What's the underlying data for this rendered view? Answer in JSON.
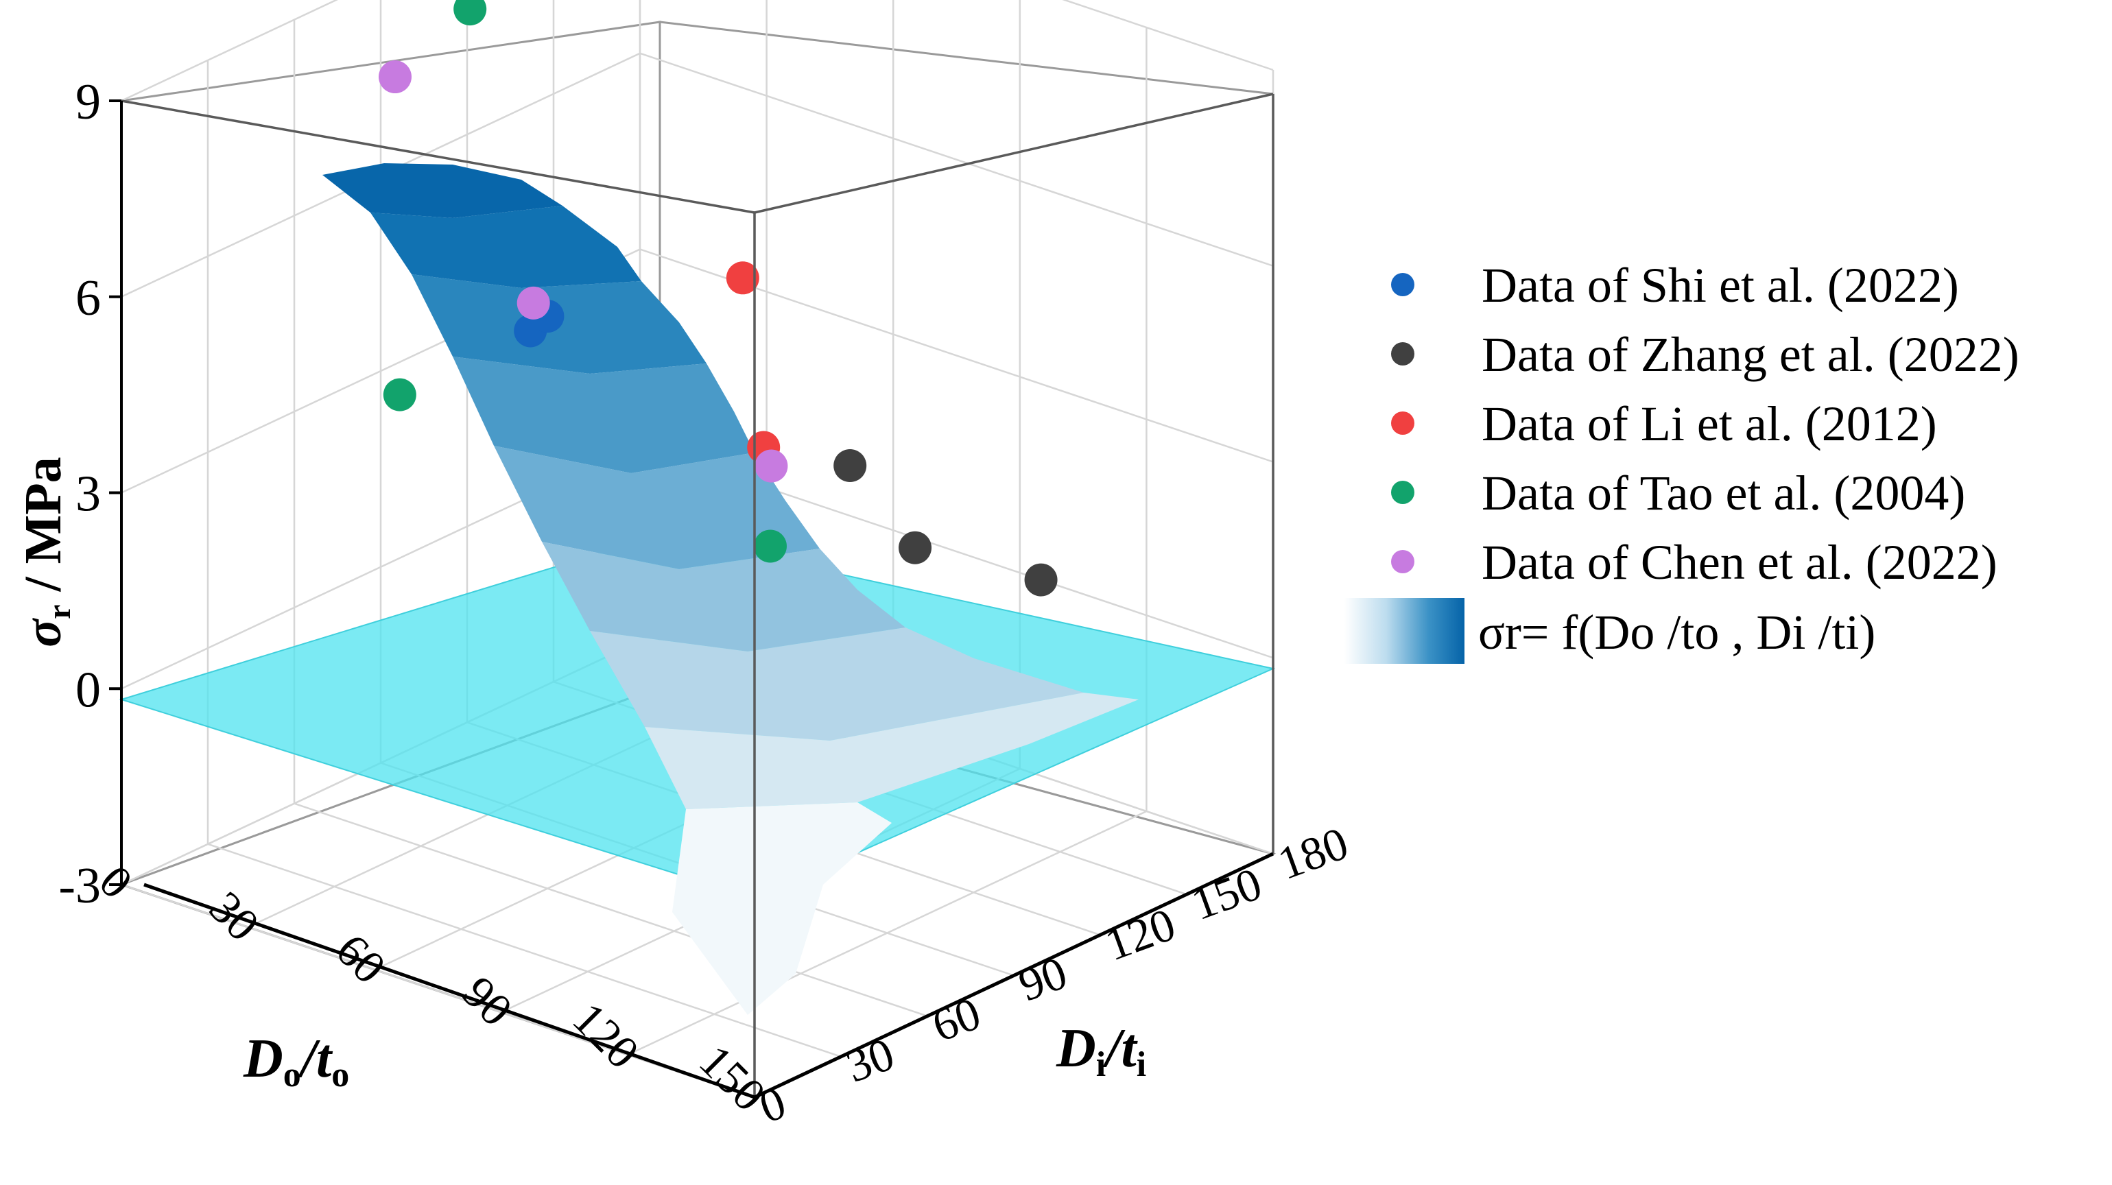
{
  "chart_data": {
    "type": "scatter",
    "title": "",
    "zlabel": "σr / MPa",
    "xlabel": "Do/to",
    "ylabel": "Di/ti",
    "x_range": [
      0,
      150
    ],
    "y_range": [
      0,
      180
    ],
    "z_range": [
      -3,
      9
    ],
    "z_ticks": [
      "9",
      "6",
      "3",
      "0",
      "-3"
    ],
    "x_ticks": [
      "0",
      "30",
      "60",
      "90",
      "120",
      "150"
    ],
    "y_ticks": [
      "0",
      "30",
      "60",
      "90",
      "120",
      "150",
      "180"
    ],
    "surface": {
      "label": "σr= f(Do /to , Di /ti)",
      "function": "σr = f(Do/to, Di/ti)",
      "colors": [
        "#f2f8fb",
        "#d5e8f2",
        "#b5d6e9",
        "#92c3df",
        "#6caed4",
        "#4a9ac8",
        "#2a86bd",
        "#1172b2",
        "#0866aa"
      ],
      "plane_z": 0,
      "plane_color": "#5ee6f0"
    },
    "series": [
      {
        "name": "Data of Shi et al. (2022)",
        "color": "#1565c0",
        "points": [
          [
            30,
            98,
            4.1
          ],
          [
            30,
            104,
            4.2
          ]
        ]
      },
      {
        "name": "Data of Zhang et al. (2022)",
        "color": "#404040",
        "points": [
          [
            60,
            165,
            1.3
          ],
          [
            72,
            170,
            0.2
          ],
          [
            95,
            180,
            0.0
          ]
        ]
      },
      {
        "name": "Data of Li et al. (2012)",
        "color": "#f04040",
        "points": [
          [
            38,
            160,
            3.8
          ],
          [
            60,
            135,
            2.2
          ]
        ]
      },
      {
        "name": "Data of Tao et al. (2004)",
        "color": "#12a36c",
        "points": [
          [
            0,
            121,
            7.9
          ],
          [
            25,
            60,
            3.8
          ],
          [
            65,
            130,
            0.9
          ]
        ]
      },
      {
        "name": "Data of Chen et al. (2022)",
        "color": "#c77be0",
        "points": [
          [
            0,
            95,
            7.4
          ],
          [
            28,
            102,
            4.4
          ],
          [
            55,
            145,
            1.6
          ]
        ]
      }
    ]
  }
}
